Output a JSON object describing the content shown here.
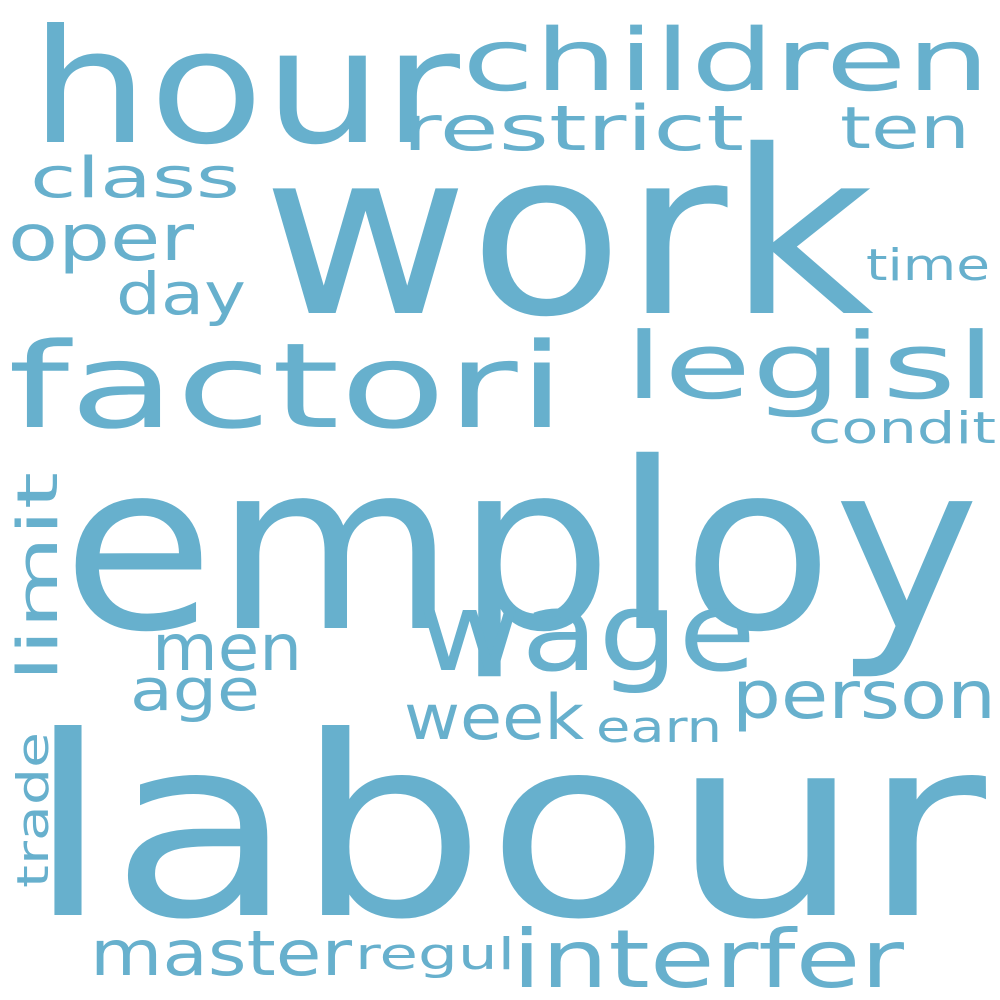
{
  "word_cloud": {
    "color": "#67b0cd",
    "background": "#ffffff",
    "words": [
      {
        "text": "employ"
      },
      {
        "text": "labour"
      },
      {
        "text": "work"
      },
      {
        "text": "hour"
      },
      {
        "text": "factori"
      },
      {
        "text": "wage"
      },
      {
        "text": "children"
      },
      {
        "text": "legisl"
      },
      {
        "text": "person"
      },
      {
        "text": "interfer"
      },
      {
        "text": "restrict"
      },
      {
        "text": "master"
      },
      {
        "text": "week"
      },
      {
        "text": "oper"
      },
      {
        "text": "men"
      },
      {
        "text": "limit"
      },
      {
        "text": "class"
      },
      {
        "text": "ten"
      },
      {
        "text": "day"
      },
      {
        "text": "age"
      },
      {
        "text": "condit"
      },
      {
        "text": "regul"
      },
      {
        "text": "trade"
      },
      {
        "text": "earn"
      },
      {
        "text": "time"
      }
    ]
  }
}
